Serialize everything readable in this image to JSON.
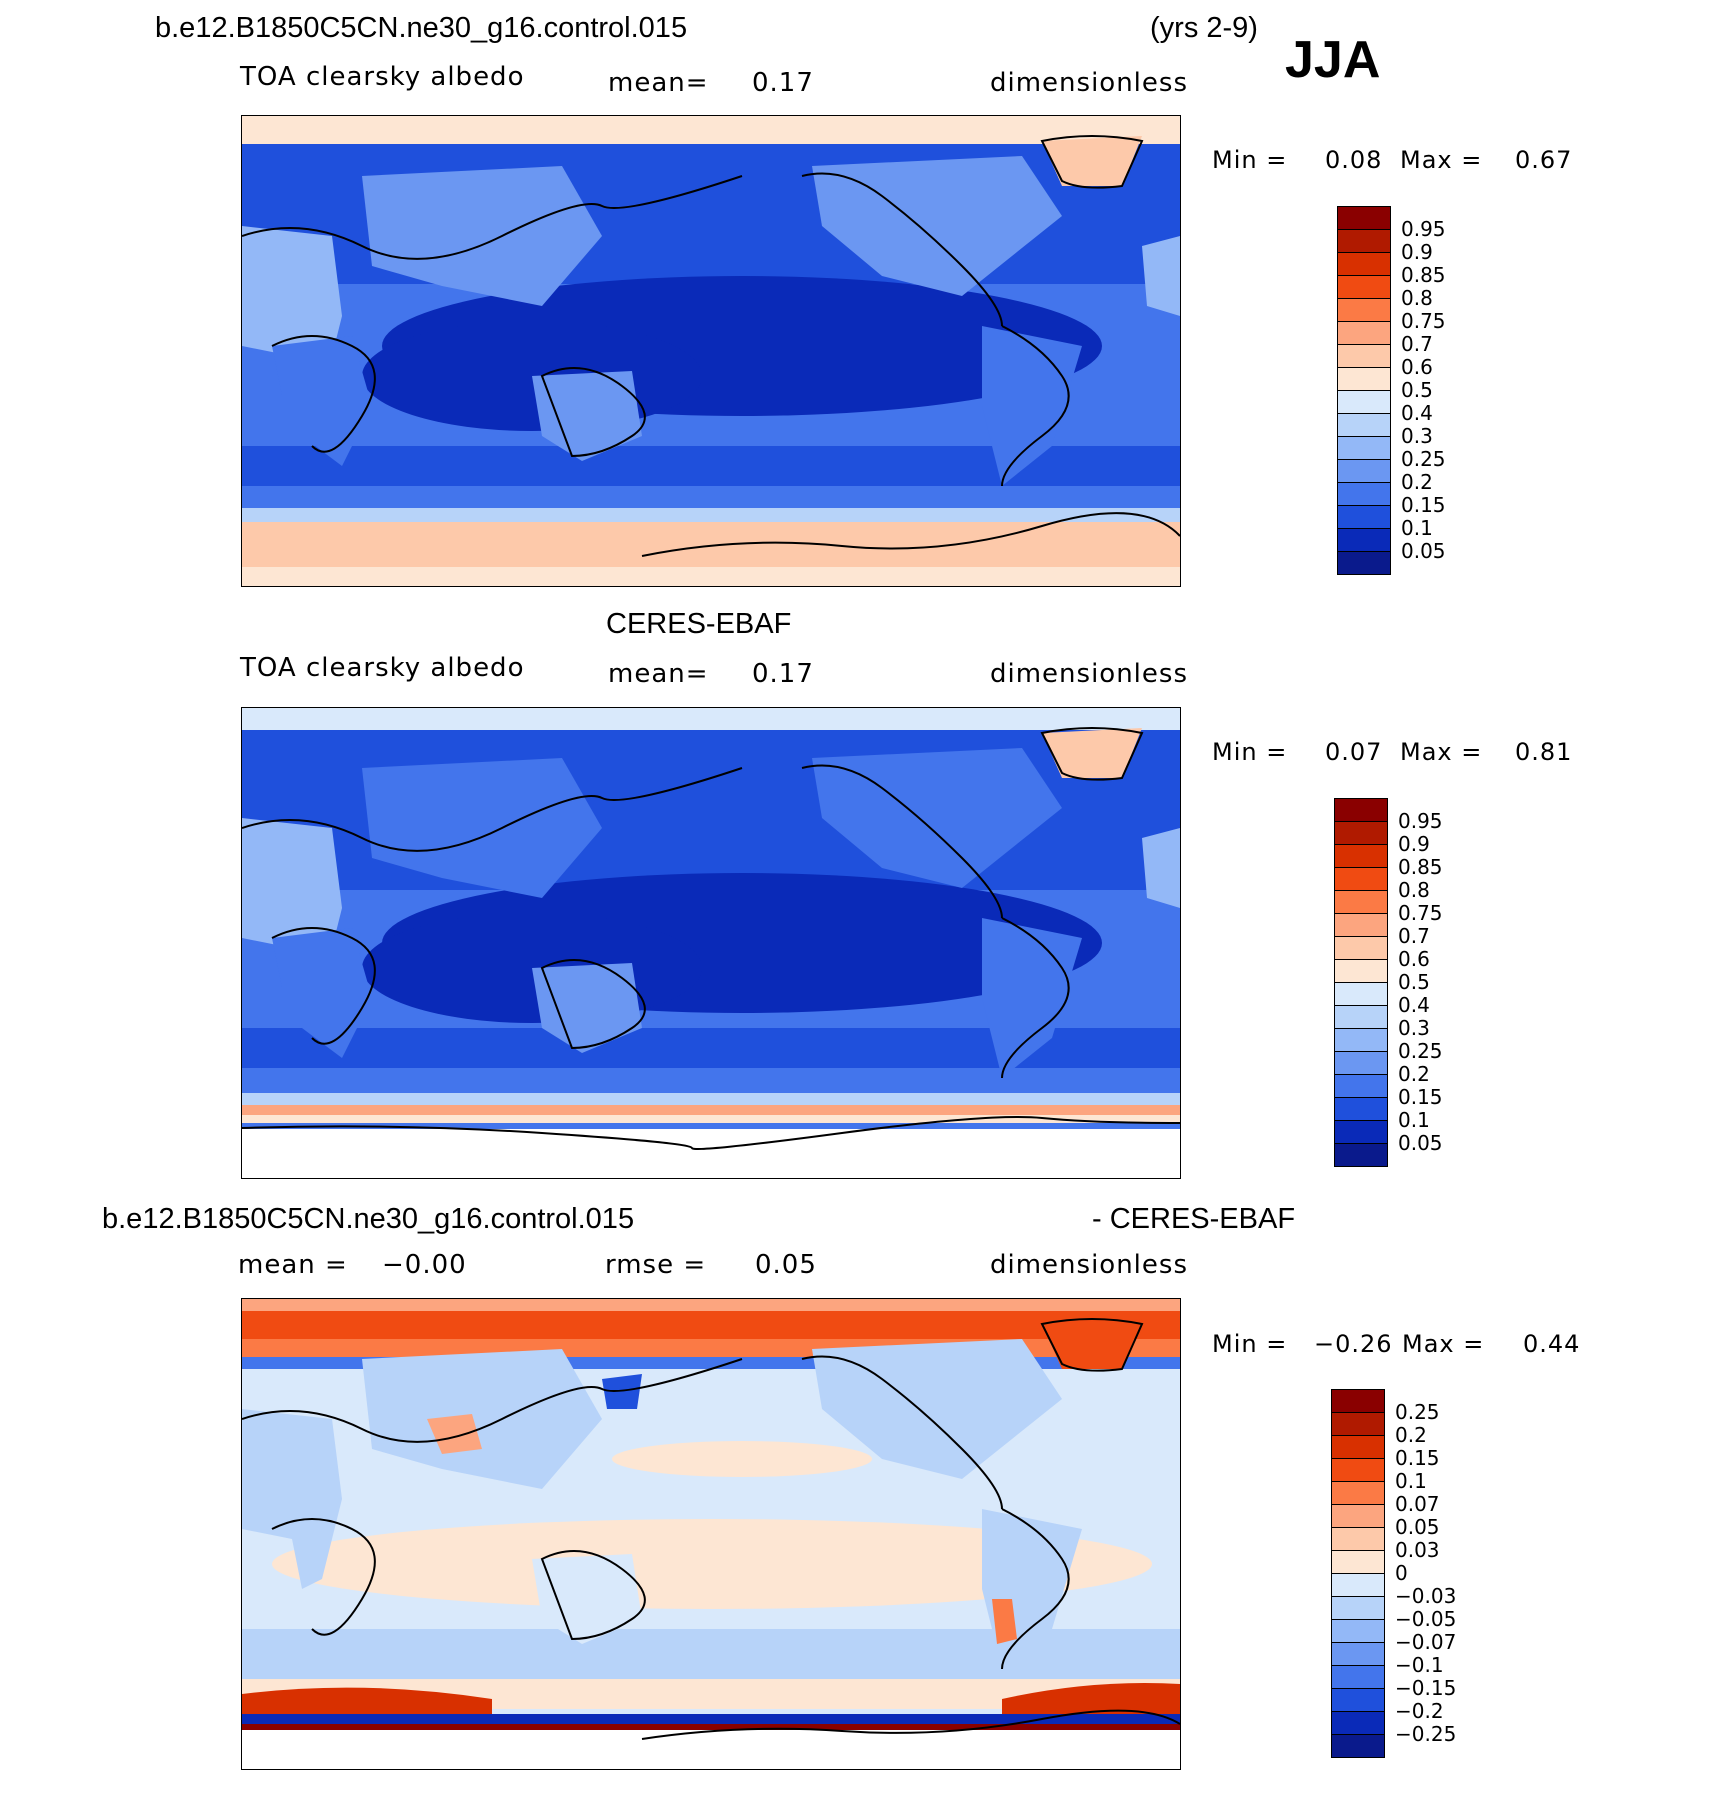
{
  "header": {
    "case_name": "b.e12.B1850C5CN.ne30_g16.control.015",
    "years": "(yrs 2-9)",
    "season": "JJA"
  },
  "panels": [
    {
      "title": "",
      "variable": "TOA clearsky albedo",
      "mean_label": "mean=",
      "mean_value": "0.17",
      "units": "dimensionless",
      "min_label": "Min =",
      "min_value": "0.08",
      "max_label": "Max =",
      "max_value": "0.67",
      "colorbar_levels": [
        "0.95",
        "0.9",
        "0.85",
        "0.8",
        "0.75",
        "0.7",
        "0.6",
        "0.5",
        "0.4",
        "0.3",
        "0.25",
        "0.2",
        "0.15",
        "0.1",
        "0.05"
      ]
    },
    {
      "title": "CERES-EBAF",
      "variable": "TOA clearsky albedo",
      "mean_label": "mean=",
      "mean_value": "0.17",
      "units": "dimensionless",
      "min_label": "Min =",
      "min_value": "0.07",
      "max_label": "Max =",
      "max_value": "0.81",
      "colorbar_levels": [
        "0.95",
        "0.9",
        "0.85",
        "0.8",
        "0.75",
        "0.7",
        "0.6",
        "0.5",
        "0.4",
        "0.3",
        "0.25",
        "0.2",
        "0.15",
        "0.1",
        "0.05"
      ]
    },
    {
      "title_left": "b.e12.B1850C5CN.ne30_g16.control.015",
      "title_right": "- CERES-EBAF",
      "mean_label": "mean =",
      "mean_value": "−0.00",
      "rmse_label": "rmse =",
      "rmse_value": "0.05",
      "units": "dimensionless",
      "min_label": "Min =",
      "min_value": "−0.26",
      "max_label": "Max =",
      "max_value": "0.44",
      "colorbar_levels": [
        "0.25",
        "0.2",
        "0.15",
        "0.1",
        "0.07",
        "0.05",
        "0.03",
        "0",
        "−0.03",
        "−0.05",
        "−0.07",
        "−0.1",
        "−0.15",
        "−0.2",
        "−0.25"
      ]
    }
  ],
  "colors": {
    "albedo_scale": [
      "#8a0000",
      "#b01a00",
      "#d83000",
      "#f04b12",
      "#fb7a45",
      "#fca57f",
      "#fdc9aa",
      "#fde6d3",
      "#d9e9fb",
      "#b7d3f9",
      "#93b8f7",
      "#6b97f2",
      "#4375ec",
      "#1f50dc",
      "#0a2ab8",
      "#0a1a8c"
    ],
    "diff_scale": [
      "#8a0000",
      "#b01a00",
      "#d83000",
      "#f04b12",
      "#fb7a45",
      "#fca57f",
      "#fdc9aa",
      "#fde6d3",
      "#d9e9fb",
      "#b7d3f9",
      "#93b8f7",
      "#6b97f2",
      "#4375ec",
      "#1f50dc",
      "#0a2ab8",
      "#0a1a8c"
    ]
  }
}
